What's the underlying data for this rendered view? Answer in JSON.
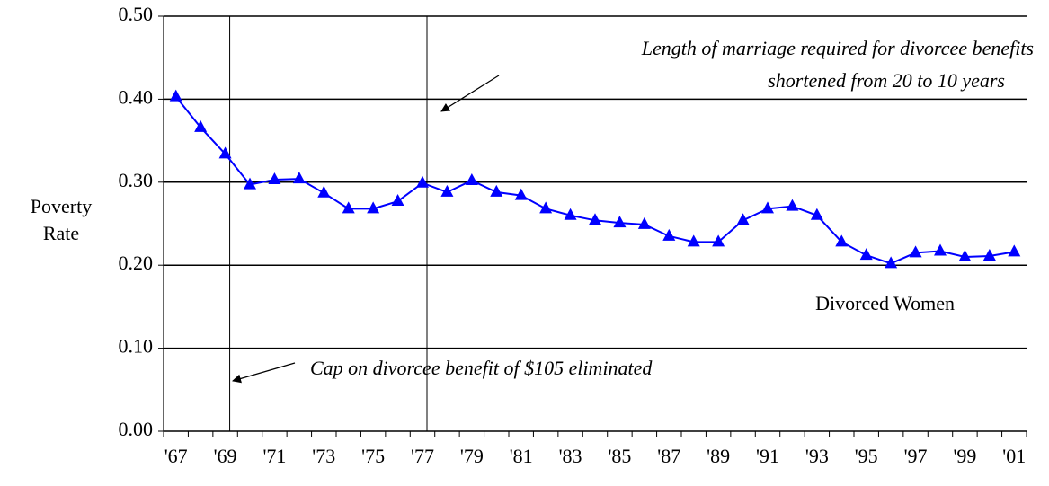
{
  "chart_data": {
    "type": "line",
    "y_label": [
      "Poverty",
      "Rate"
    ],
    "categories": [
      "'67",
      null,
      "'69",
      null,
      "'71",
      null,
      "'73",
      null,
      "'75",
      null,
      "'77",
      null,
      "'79",
      null,
      "'81",
      null,
      "'83",
      null,
      "'85",
      null,
      "'87",
      null,
      "'89",
      null,
      "'91",
      null,
      "'93",
      null,
      "'95",
      null,
      "'97",
      null,
      "'99",
      null,
      "'01"
    ],
    "series": [
      {
        "name": "Divorced Women",
        "color": "#0000ff",
        "values": [
          0.403,
          0.366,
          0.334,
          0.297,
          0.303,
          0.304,
          0.287,
          0.268,
          0.268,
          0.277,
          0.299,
          0.288,
          0.302,
          0.288,
          0.284,
          0.268,
          0.26,
          0.254,
          0.251,
          0.249,
          0.235,
          0.228,
          0.228,
          0.254,
          0.268,
          0.271,
          0.26,
          0.228,
          0.212,
          0.202,
          0.215,
          0.217,
          0.21,
          0.211,
          0.216
        ]
      }
    ],
    "ylim": [
      0,
      0.5
    ],
    "yticks": [
      {
        "value": 0,
        "label": "0.00"
      },
      {
        "value": 0.1,
        "label": "0.10"
      },
      {
        "value": 0.2,
        "label": "0.20"
      },
      {
        "value": 0.3,
        "label": "0.30"
      },
      {
        "value": 0.4,
        "label": "0.40"
      },
      {
        "value": 0.5,
        "label": "0.50"
      }
    ],
    "grid": true,
    "annotations": [
      {
        "lines": [
          "Length of marriage required for divorcee benefits",
          "shortened from 20 to 10 years"
        ]
      },
      {
        "lines": [
          "Cap on divorcee benefit of $105 eliminated"
        ]
      }
    ]
  }
}
